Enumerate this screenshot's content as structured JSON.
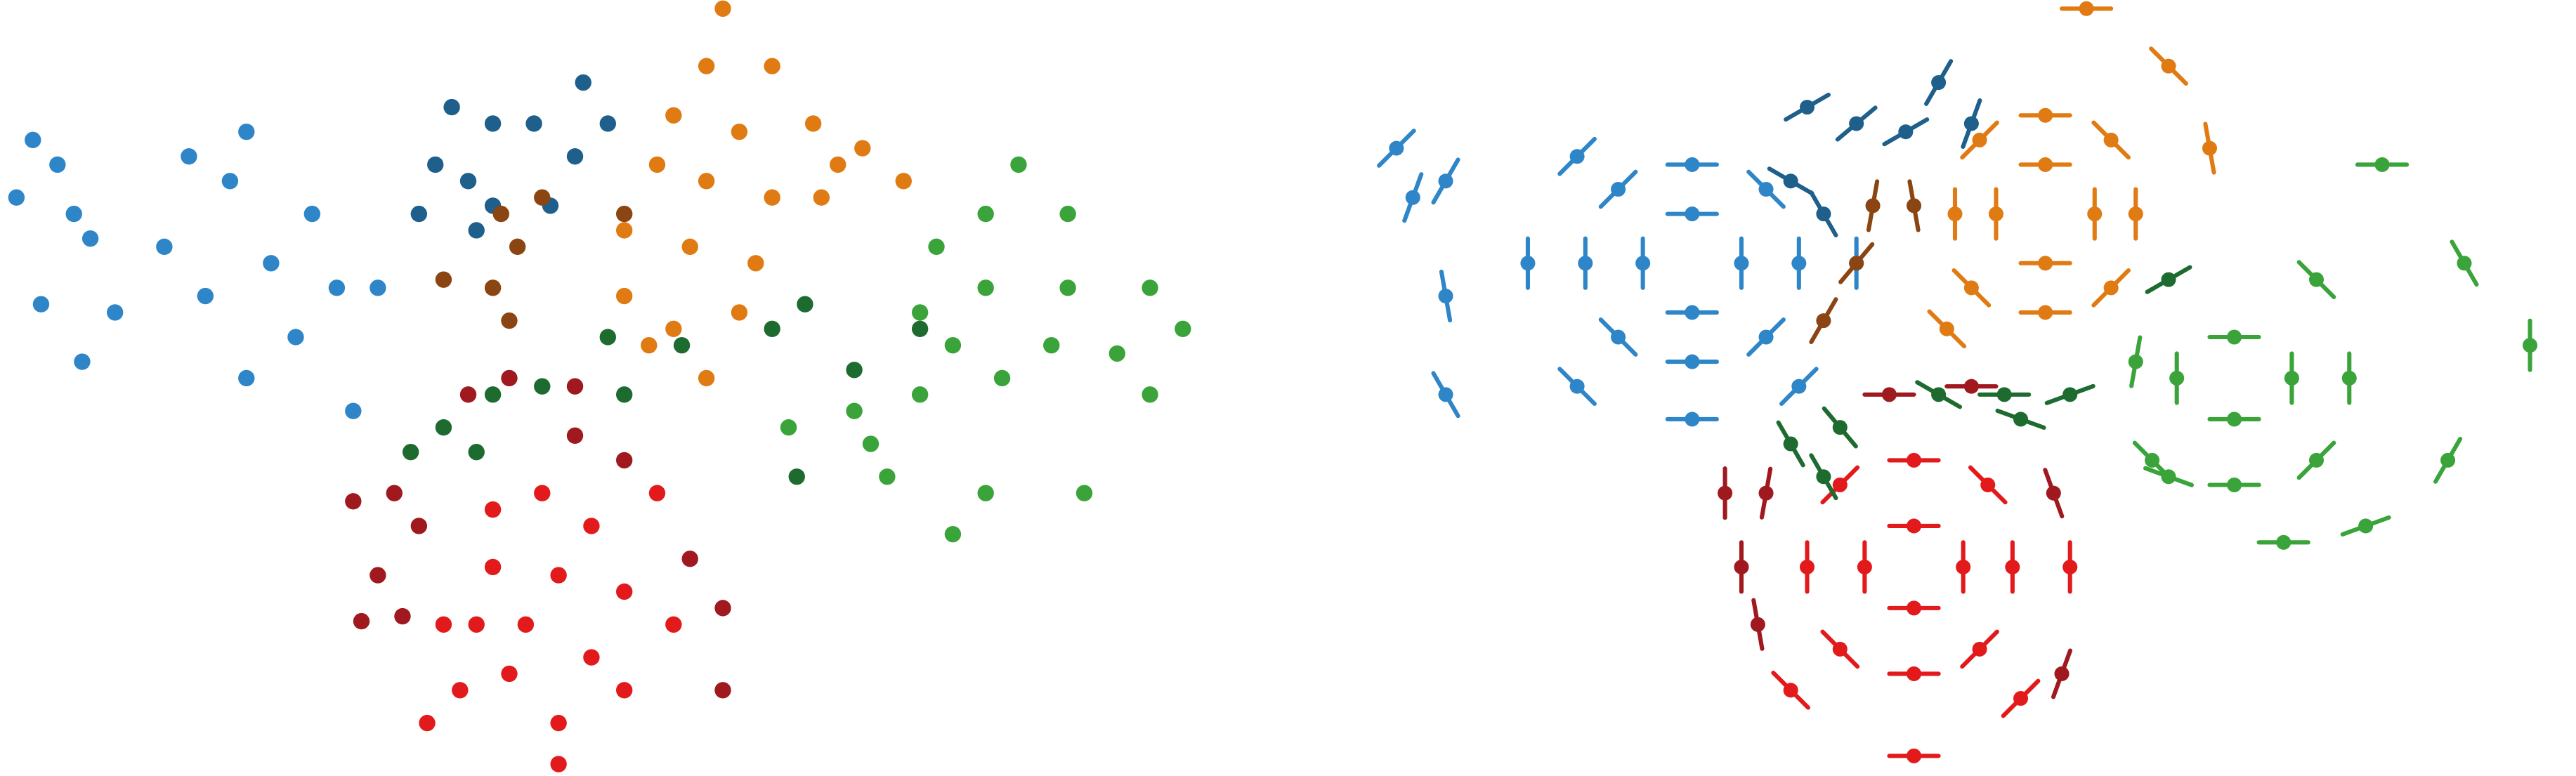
{
  "chart_data": [
    {
      "type": "scatter",
      "xlim": [
        0,
        1568
      ],
      "ylim": [
        472,
        0
      ],
      "series": [
        {
          "color": "#2e86c8",
          "x": [
            20,
            35,
            10,
            45,
            55,
            25,
            70,
            50,
            115,
            150,
            140,
            190,
            165,
            205,
            125,
            180,
            150,
            215,
            230,
            100
          ],
          "values": [
            85,
            100,
            120,
            130,
            145,
            185,
            190,
            220,
            95,
            80,
            110,
            130,
            160,
            175,
            180,
            205,
            230,
            250,
            175,
            150
          ]
        },
        {
          "color": "#1f5f8b",
          "x": [
            275,
            300,
            265,
            285,
            255,
            300,
            325,
            355,
            370,
            350,
            335,
            290
          ],
          "values": [
            65,
            75,
            100,
            110,
            130,
            125,
            75,
            50,
            75,
            95,
            125,
            140
          ]
        },
        {
          "color": "#8b4513",
          "x": [
            305,
            315,
            300,
            270,
            310,
            380,
            330
          ],
          "values": [
            130,
            150,
            175,
            170,
            195,
            130,
            120
          ]
        },
        {
          "color": "#e07b14",
          "x": [
            440,
            430,
            470,
            410,
            450,
            495,
            400,
            430,
            470,
            510,
            550,
            380,
            420,
            460,
            380,
            410,
            450,
            500,
            395,
            430,
            525
          ],
          "values": [
            5,
            40,
            40,
            70,
            80,
            75,
            100,
            110,
            120,
            100,
            110,
            140,
            150,
            160,
            180,
            200,
            190,
            120,
            210,
            230,
            90
          ]
        },
        {
          "color": "#1e6b30",
          "x": [
            370,
            415,
            300,
            330,
            380,
            270,
            290,
            250,
            490,
            470,
            520,
            485,
            560
          ],
          "values": [
            205,
            210,
            240,
            235,
            240,
            260,
            275,
            275,
            185,
            200,
            225,
            290,
            200
          ]
        },
        {
          "color": "#3aa43a",
          "x": [
            620,
            600,
            650,
            570,
            560,
            600,
            650,
            700,
            720,
            680,
            640,
            580,
            520,
            560,
            610,
            700,
            540,
            600,
            660,
            580,
            480,
            530
          ],
          "values": [
            100,
            130,
            130,
            150,
            190,
            175,
            175,
            175,
            200,
            215,
            210,
            210,
            250,
            240,
            230,
            240,
            290,
            300,
            300,
            325,
            260,
            270
          ]
        },
        {
          "color": "#a0191e",
          "x": [
            310,
            350,
            285,
            240,
            215,
            255,
            230,
            245,
            220,
            420,
            440,
            440,
            350,
            380
          ],
          "values": [
            230,
            235,
            240,
            300,
            305,
            320,
            350,
            375,
            378,
            340,
            370,
            420,
            265,
            280
          ]
        },
        {
          "color": "#e31a1c",
          "x": [
            300,
            330,
            360,
            300,
            340,
            320,
            290,
            270,
            380,
            360,
            310,
            340,
            280,
            260,
            380,
            340,
            410,
            400
          ],
          "values": [
            310,
            300,
            320,
            345,
            350,
            380,
            380,
            380,
            360,
            400,
            410,
            440,
            420,
            440,
            420,
            465,
            380,
            300
          ]
        }
      ]
    },
    {
      "type": "quiver",
      "xlim": [
        0,
        1568
      ],
      "ylim": [
        472,
        0
      ],
      "series": [
        {
          "color": "#2e86c8",
          "x": [
            1060,
            1030,
            1000,
            1030,
            1095,
            1075,
            1030,
            985,
            965,
            985,
            1030,
            1075,
            1130,
            1095,
            1030,
            960,
            930,
            960,
            880,
            860,
            880,
            880,
            850
          ],
          "values": [
            160,
            190,
            160,
            130,
            160,
            205,
            220,
            205,
            160,
            115,
            100,
            115,
            160,
            235,
            255,
            235,
            160,
            95,
            110,
            120,
            180,
            240,
            90
          ],
          "angles": [
            90,
            0,
            90,
            0,
            90,
            135,
            0,
            45,
            90,
            135,
            0,
            45,
            90,
            135,
            0,
            45,
            90,
            135,
            120,
            110,
            80,
            60,
            135
          ]
        },
        {
          "color": "#e07b14",
          "x": [
            1275,
            1245,
            1215,
            1245,
            1300,
            1285,
            1245,
            1200,
            1190,
            1205,
            1245,
            1285,
            1320,
            1345,
            1270,
            1185
          ],
          "values": [
            130,
            160,
            130,
            100,
            130,
            175,
            190,
            175,
            130,
            85,
            70,
            85,
            40,
            90,
            5,
            200
          ],
          "angles": [
            90,
            0,
            90,
            0,
            90,
            135,
            0,
            45,
            90,
            135,
            0,
            45,
            45,
            80,
            0,
            45
          ]
        },
        {
          "color": "#3aa43a",
          "x": [
            1395,
            1360,
            1325,
            1360,
            1430,
            1410,
            1360,
            1310,
            1300,
            1410,
            1450,
            1500,
            1540,
            1490,
            1440,
            1390,
            1320
          ],
          "values": [
            230,
            255,
            230,
            205,
            230,
            280,
            295,
            280,
            220,
            170,
            100,
            160,
            210,
            280,
            320,
            330,
            290
          ],
          "angles": [
            90,
            0,
            90,
            0,
            90,
            135,
            0,
            45,
            100,
            45,
            0,
            60,
            90,
            120,
            160,
            0,
            20
          ]
        },
        {
          "color": "#e31a1c",
          "x": [
            1195,
            1165,
            1135,
            1165,
            1225,
            1205,
            1165,
            1120,
            1100,
            1120,
            1165,
            1210,
            1260,
            1230,
            1165,
            1090
          ],
          "values": [
            345,
            370,
            345,
            320,
            345,
            395,
            410,
            395,
            345,
            295,
            280,
            295,
            345,
            425,
            460,
            420
          ],
          "angles": [
            90,
            0,
            90,
            0,
            90,
            135,
            0,
            45,
            90,
            135,
            0,
            45,
            90,
            135,
            0,
            45
          ]
        },
        {
          "color": "#a0191e",
          "x": [
            1060,
            1070,
            1075,
            1250,
            1255,
            1150,
            1200,
            1050
          ],
          "values": [
            345,
            380,
            300,
            300,
            410,
            240,
            235,
            300
          ],
          "angles": [
            90,
            80,
            100,
            70,
            110,
            0,
            0,
            90
          ]
        },
        {
          "color": "#1f5f8b",
          "x": [
            1100,
            1130,
            1180,
            1200,
            1090,
            1110,
            1160
          ],
          "values": [
            65,
            75,
            50,
            75,
            110,
            130,
            80
          ],
          "angles": [
            150,
            140,
            120,
            110,
            30,
            60,
            150
          ]
        },
        {
          "color": "#8b4513",
          "x": [
            1140,
            1165,
            1130,
            1110
          ],
          "values": [
            125,
            125,
            160,
            195
          ],
          "angles": [
            100,
            80,
            130,
            120
          ]
        },
        {
          "color": "#1e6b30",
          "x": [
            1090,
            1120,
            1180,
            1220,
            1260,
            1320,
            1110,
            1230
          ],
          "values": [
            270,
            260,
            240,
            240,
            240,
            170,
            290,
            255
          ],
          "angles": [
            60,
            50,
            30,
            0,
            160,
            150,
            60,
            20
          ]
        }
      ]
    }
  ]
}
